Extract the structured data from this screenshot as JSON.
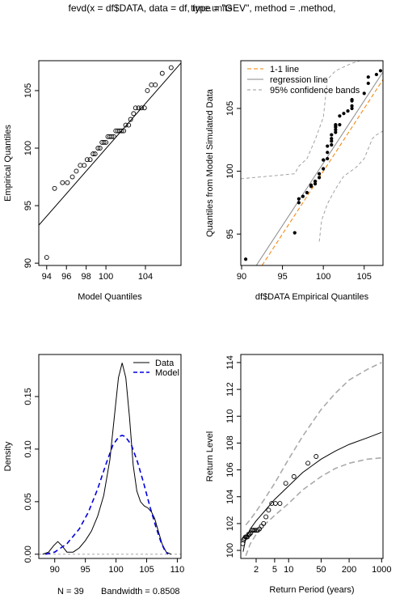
{
  "title": "fevd(x = df$DATA, data = df, type = \"GEV\", method = .method,",
  "title_overlap": "time.units",
  "chart_data": [
    {
      "type": "scatter",
      "id": "qq1",
      "xlabel": "Model Quantiles",
      "ylabel": "Empirical Quantiles",
      "xlim": [
        93.2,
        107.6
      ],
      "ylim": [
        89.8,
        107.6
      ],
      "xticks": [
        94,
        96,
        98,
        100,
        104
      ],
      "yticks": [
        90,
        95,
        100,
        105
      ],
      "points": {
        "x": [
          94.0,
          94.8,
          95.6,
          96.1,
          96.6,
          97.0,
          97.4,
          97.8,
          98.1,
          98.4,
          98.7,
          98.9,
          99.2,
          99.4,
          99.6,
          99.8,
          100.0,
          100.2,
          100.4,
          100.6,
          100.8,
          101.0,
          101.2,
          101.4,
          101.6,
          101.8,
          102.0,
          102.3,
          102.5,
          102.8,
          103.0,
          103.3,
          103.6,
          103.9,
          104.2,
          104.6,
          105.0,
          105.7,
          106.6
        ],
        "y": [
          90.5,
          96.5,
          97.0,
          97.0,
          97.5,
          98.0,
          98.5,
          98.5,
          99.0,
          99.0,
          99.5,
          99.5,
          100.0,
          100.0,
          100.5,
          100.5,
          100.5,
          101.0,
          101.0,
          101.0,
          101.0,
          101.5,
          101.5,
          101.5,
          101.5,
          101.5,
          102.0,
          102.0,
          102.5,
          103.0,
          103.5,
          103.5,
          103.5,
          103.5,
          105.0,
          105.5,
          105.5,
          106.5,
          107.0
        ]
      },
      "line": [
        [
          93.2,
          93.3
        ],
        [
          107.6,
          107.4
        ]
      ]
    },
    {
      "type": "scatter",
      "id": "qq2",
      "xlabel": "df$DATA Empirical Quantiles",
      "ylabel": "Quantiles from Model Simulated Data",
      "xlim": [
        89.9,
        107.3
      ],
      "ylim": [
        92.5,
        108.8
      ],
      "xticks": [
        90,
        95,
        100,
        105
      ],
      "yticks": [
        95,
        100,
        105
      ],
      "legend": {
        "position": "top-left",
        "entries": [
          "1-1 line",
          "regression line",
          "95% confidence bands"
        ]
      },
      "points": {
        "x": [
          90.5,
          96.5,
          97.0,
          97.0,
          97.5,
          98.0,
          98.5,
          98.5,
          99.0,
          99.0,
          99.5,
          99.5,
          100.0,
          100.0,
          100.5,
          100.5,
          100.5,
          101.0,
          101.0,
          101.0,
          101.0,
          101.5,
          101.5,
          101.5,
          101.5,
          101.5,
          102.0,
          102.0,
          102.5,
          103.0,
          103.5,
          103.5,
          103.5,
          103.5,
          105.0,
          105.5,
          105.5,
          106.5,
          107.0
        ],
        "y": [
          93.0,
          95.1,
          97.5,
          97.8,
          98.0,
          98.3,
          98.8,
          98.9,
          99.0,
          99.2,
          99.5,
          99.8,
          100.2,
          100.9,
          101.0,
          101.5,
          102.0,
          102.1,
          102.4,
          102.6,
          102.9,
          103.1,
          103.3,
          103.5,
          103.6,
          103.7,
          103.7,
          104.4,
          104.6,
          104.8,
          105.0,
          105.2,
          105.6,
          105.7,
          106.2,
          107.0,
          107.5,
          107.7,
          108.0
        ],
        "filled": true
      },
      "one_to_one": [
        [
          92.5,
          92.5
        ],
        [
          107.3,
          107.3
        ]
      ],
      "regression": [
        [
          91.8,
          92.5
        ],
        [
          107.3,
          107.9
        ]
      ],
      "band_upper": [
        [
          89.9,
          99.4
        ],
        [
          96.5,
          99.8
        ],
        [
          97.0,
          100.4
        ],
        [
          98.0,
          101.0
        ],
        [
          99.0,
          102.5
        ],
        [
          100.0,
          104.3
        ],
        [
          100.5,
          107.3
        ],
        [
          101.5,
          108.0
        ],
        [
          103.5,
          108.6
        ],
        [
          104.5,
          108.8
        ]
      ],
      "band_lower": [
        [
          99.5,
          94.4
        ],
        [
          99.8,
          96.1
        ],
        [
          100.5,
          97.4
        ],
        [
          101.5,
          98.6
        ],
        [
          102.5,
          99.6
        ],
        [
          104.0,
          100.3
        ],
        [
          105.0,
          101.0
        ],
        [
          106.0,
          102.6
        ],
        [
          106.5,
          102.9
        ],
        [
          107.3,
          103.2
        ]
      ]
    },
    {
      "type": "line",
      "id": "density",
      "ylabel": "Density",
      "xlim": [
        87.4,
        110.6
      ],
      "ylim": [
        -0.004,
        0.19
      ],
      "xticks": [
        90,
        95,
        100,
        105,
        110
      ],
      "yticks": [
        0.0,
        0.05,
        0.1,
        0.15
      ],
      "ytick_labels": [
        "0.00",
        "0.05",
        "0.10",
        "0.15"
      ],
      "bottom_labels": [
        "N = 39",
        "Bandwidth = 0.8508"
      ],
      "legend": {
        "position": "top-right",
        "entries": [
          "Data",
          "Model"
        ]
      },
      "series": [
        {
          "name": "Data",
          "color": "#000000",
          "x": [
            88.0,
            89.0,
            89.8,
            90.5,
            91.2,
            92.0,
            93.0,
            94.0,
            95.0,
            96.0,
            97.0,
            98.0,
            99.0,
            99.8,
            100.4,
            101.0,
            101.6,
            102.2,
            102.8,
            103.4,
            104.0,
            104.6,
            105.2,
            105.8,
            106.3,
            106.9,
            107.5,
            108.2,
            109.0
          ],
          "y": [
            0.0,
            0.002,
            0.008,
            0.012,
            0.008,
            0.002,
            0.002,
            0.006,
            0.013,
            0.022,
            0.036,
            0.056,
            0.09,
            0.135,
            0.168,
            0.182,
            0.168,
            0.13,
            0.085,
            0.06,
            0.05,
            0.046,
            0.044,
            0.04,
            0.034,
            0.022,
            0.01,
            0.002,
            0.0
          ]
        },
        {
          "name": "Model",
          "color": "#0000dd",
          "x": [
            88.5,
            90.0,
            92.0,
            94.0,
            95.5,
            97.0,
            98.5,
            99.5,
            100.5,
            101.0,
            101.5,
            102.5,
            103.5,
            104.5,
            105.5,
            106.5,
            107.3,
            108.0,
            108.5
          ],
          "y": [
            0.0,
            0.002,
            0.01,
            0.024,
            0.04,
            0.062,
            0.088,
            0.104,
            0.112,
            0.113,
            0.112,
            0.104,
            0.088,
            0.068,
            0.046,
            0.026,
            0.012,
            0.003,
            0.0
          ]
        }
      ]
    },
    {
      "type": "line",
      "id": "return-level",
      "xlabel": "Return Period (years)",
      "ylabel": "Return Level",
      "xscale": "log",
      "xlim": [
        0.935,
        1070
      ],
      "ylim": [
        99.4,
        114.6
      ],
      "xticks": [
        2,
        5,
        10,
        50,
        200,
        1000
      ],
      "yticks": [
        100,
        102,
        104,
        106,
        108,
        110,
        112,
        114
      ],
      "estimate": {
        "x": [
          1.05,
          1.2,
          1.5,
          2,
          3,
          5,
          10,
          20,
          50,
          100,
          200,
          500,
          1000
        ],
        "y": [
          99.9,
          100.9,
          101.6,
          102.2,
          102.9,
          103.8,
          104.8,
          105.8,
          106.8,
          107.4,
          107.9,
          108.4,
          108.8
        ]
      },
      "ci_upper": {
        "x": [
          1.2,
          1.5,
          2,
          3,
          5,
          10,
          20,
          50,
          100,
          200,
          500,
          1000
        ],
        "y": [
          101.9,
          102.3,
          102.9,
          103.8,
          105.0,
          106.8,
          108.5,
          110.5,
          111.7,
          112.7,
          113.5,
          114.0
        ]
      },
      "ci_lower": {
        "x": [
          1.2,
          1.5,
          2,
          3,
          5,
          10,
          20,
          50,
          100,
          200,
          500,
          1000
        ],
        "y": [
          99.6,
          100.5,
          101.2,
          101.9,
          102.6,
          103.5,
          104.5,
          105.5,
          106.1,
          106.5,
          106.8,
          106.9
        ]
      },
      "points": {
        "x": [
          1.03,
          1.08,
          1.13,
          1.18,
          1.24,
          1.3,
          1.37,
          1.44,
          1.53,
          1.63,
          1.74,
          1.86,
          2.0,
          2.17,
          2.36,
          2.6,
          2.89,
          3.25,
          3.71,
          4.33,
          5.2,
          6.5,
          8.67,
          13.0,
          26.0
        ],
        "y": [
          100.5,
          100.8,
          100.9,
          101.0,
          101.0,
          101.0,
          101.2,
          101.2,
          101.3,
          101.5,
          101.5,
          101.5,
          101.5,
          101.5,
          101.6,
          101.8,
          102.0,
          102.5,
          103.0,
          103.5,
          103.5,
          103.5,
          105.0,
          105.5,
          106.5
        ]
      },
      "extra_points": {
        "x": [
          39.0
        ],
        "y": [
          107.0
        ]
      }
    }
  ]
}
